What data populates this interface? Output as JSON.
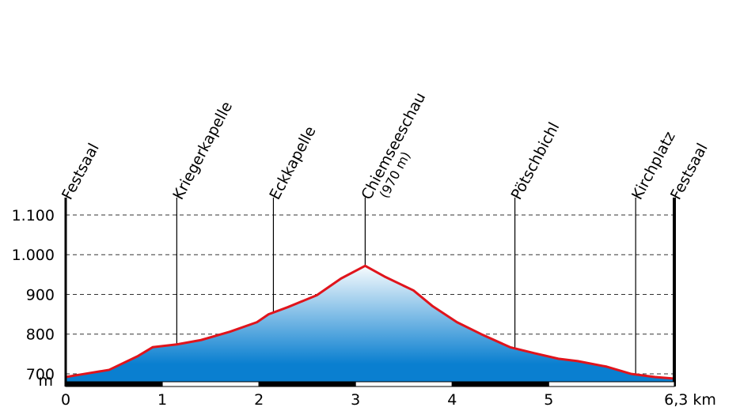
{
  "chart_data": {
    "type": "area",
    "title": "",
    "xlabel": "km",
    "ylabel": "m",
    "xlim": [
      0,
      6.3
    ],
    "ylim": [
      680,
      1100
    ],
    "x_ticks": [
      "0",
      "1",
      "2",
      "3",
      "4",
      "5",
      "6,3"
    ],
    "x_tick_values": [
      0,
      1,
      2,
      3,
      4,
      5,
      6.3
    ],
    "y_ticks": [
      "700",
      "800",
      "900",
      "1.000",
      "1.100"
    ],
    "y_tick_values": [
      700,
      800,
      900,
      1000,
      1100
    ],
    "grid": "horizontal dashed",
    "fill_color_top": "#ffffff",
    "fill_color_bottom": "#0a7fd0",
    "line_color": "#e0141c",
    "profile": [
      {
        "x": 0.0,
        "y": 692
      },
      {
        "x": 0.2,
        "y": 700
      },
      {
        "x": 0.45,
        "y": 710
      },
      {
        "x": 0.75,
        "y": 745
      },
      {
        "x": 0.9,
        "y": 767
      },
      {
        "x": 1.15,
        "y": 774
      },
      {
        "x": 1.4,
        "y": 785
      },
      {
        "x": 1.7,
        "y": 806
      },
      {
        "x": 1.98,
        "y": 830
      },
      {
        "x": 2.1,
        "y": 850
      },
      {
        "x": 2.3,
        "y": 868
      },
      {
        "x": 2.6,
        "y": 898
      },
      {
        "x": 2.85,
        "y": 940
      },
      {
        "x": 3.1,
        "y": 972
      },
      {
        "x": 3.3,
        "y": 945
      },
      {
        "x": 3.6,
        "y": 910
      },
      {
        "x": 3.8,
        "y": 870
      },
      {
        "x": 4.05,
        "y": 830
      },
      {
        "x": 4.3,
        "y": 800
      },
      {
        "x": 4.6,
        "y": 767
      },
      {
        "x": 4.85,
        "y": 752
      },
      {
        "x": 5.1,
        "y": 738
      },
      {
        "x": 5.3,
        "y": 732
      },
      {
        "x": 5.6,
        "y": 718
      },
      {
        "x": 5.85,
        "y": 700
      },
      {
        "x": 6.1,
        "y": 692
      },
      {
        "x": 6.3,
        "y": 688
      }
    ],
    "waypoints": [
      {
        "name": "Festsaal",
        "sub": "",
        "x": 0.0
      },
      {
        "name": "Kriegerkapelle",
        "sub": "",
        "x": 1.15
      },
      {
        "name": "Eckkapelle",
        "sub": "",
        "x": 2.15
      },
      {
        "name": "Chiemseeschau",
        "sub": "(970 m)",
        "x": 3.1
      },
      {
        "name": "Pötschbichl",
        "sub": "",
        "x": 4.65
      },
      {
        "name": "Kirchplatz",
        "sub": "",
        "x": 5.9
      },
      {
        "name": "Festsaal",
        "sub": "",
        "x": 6.3
      }
    ]
  }
}
